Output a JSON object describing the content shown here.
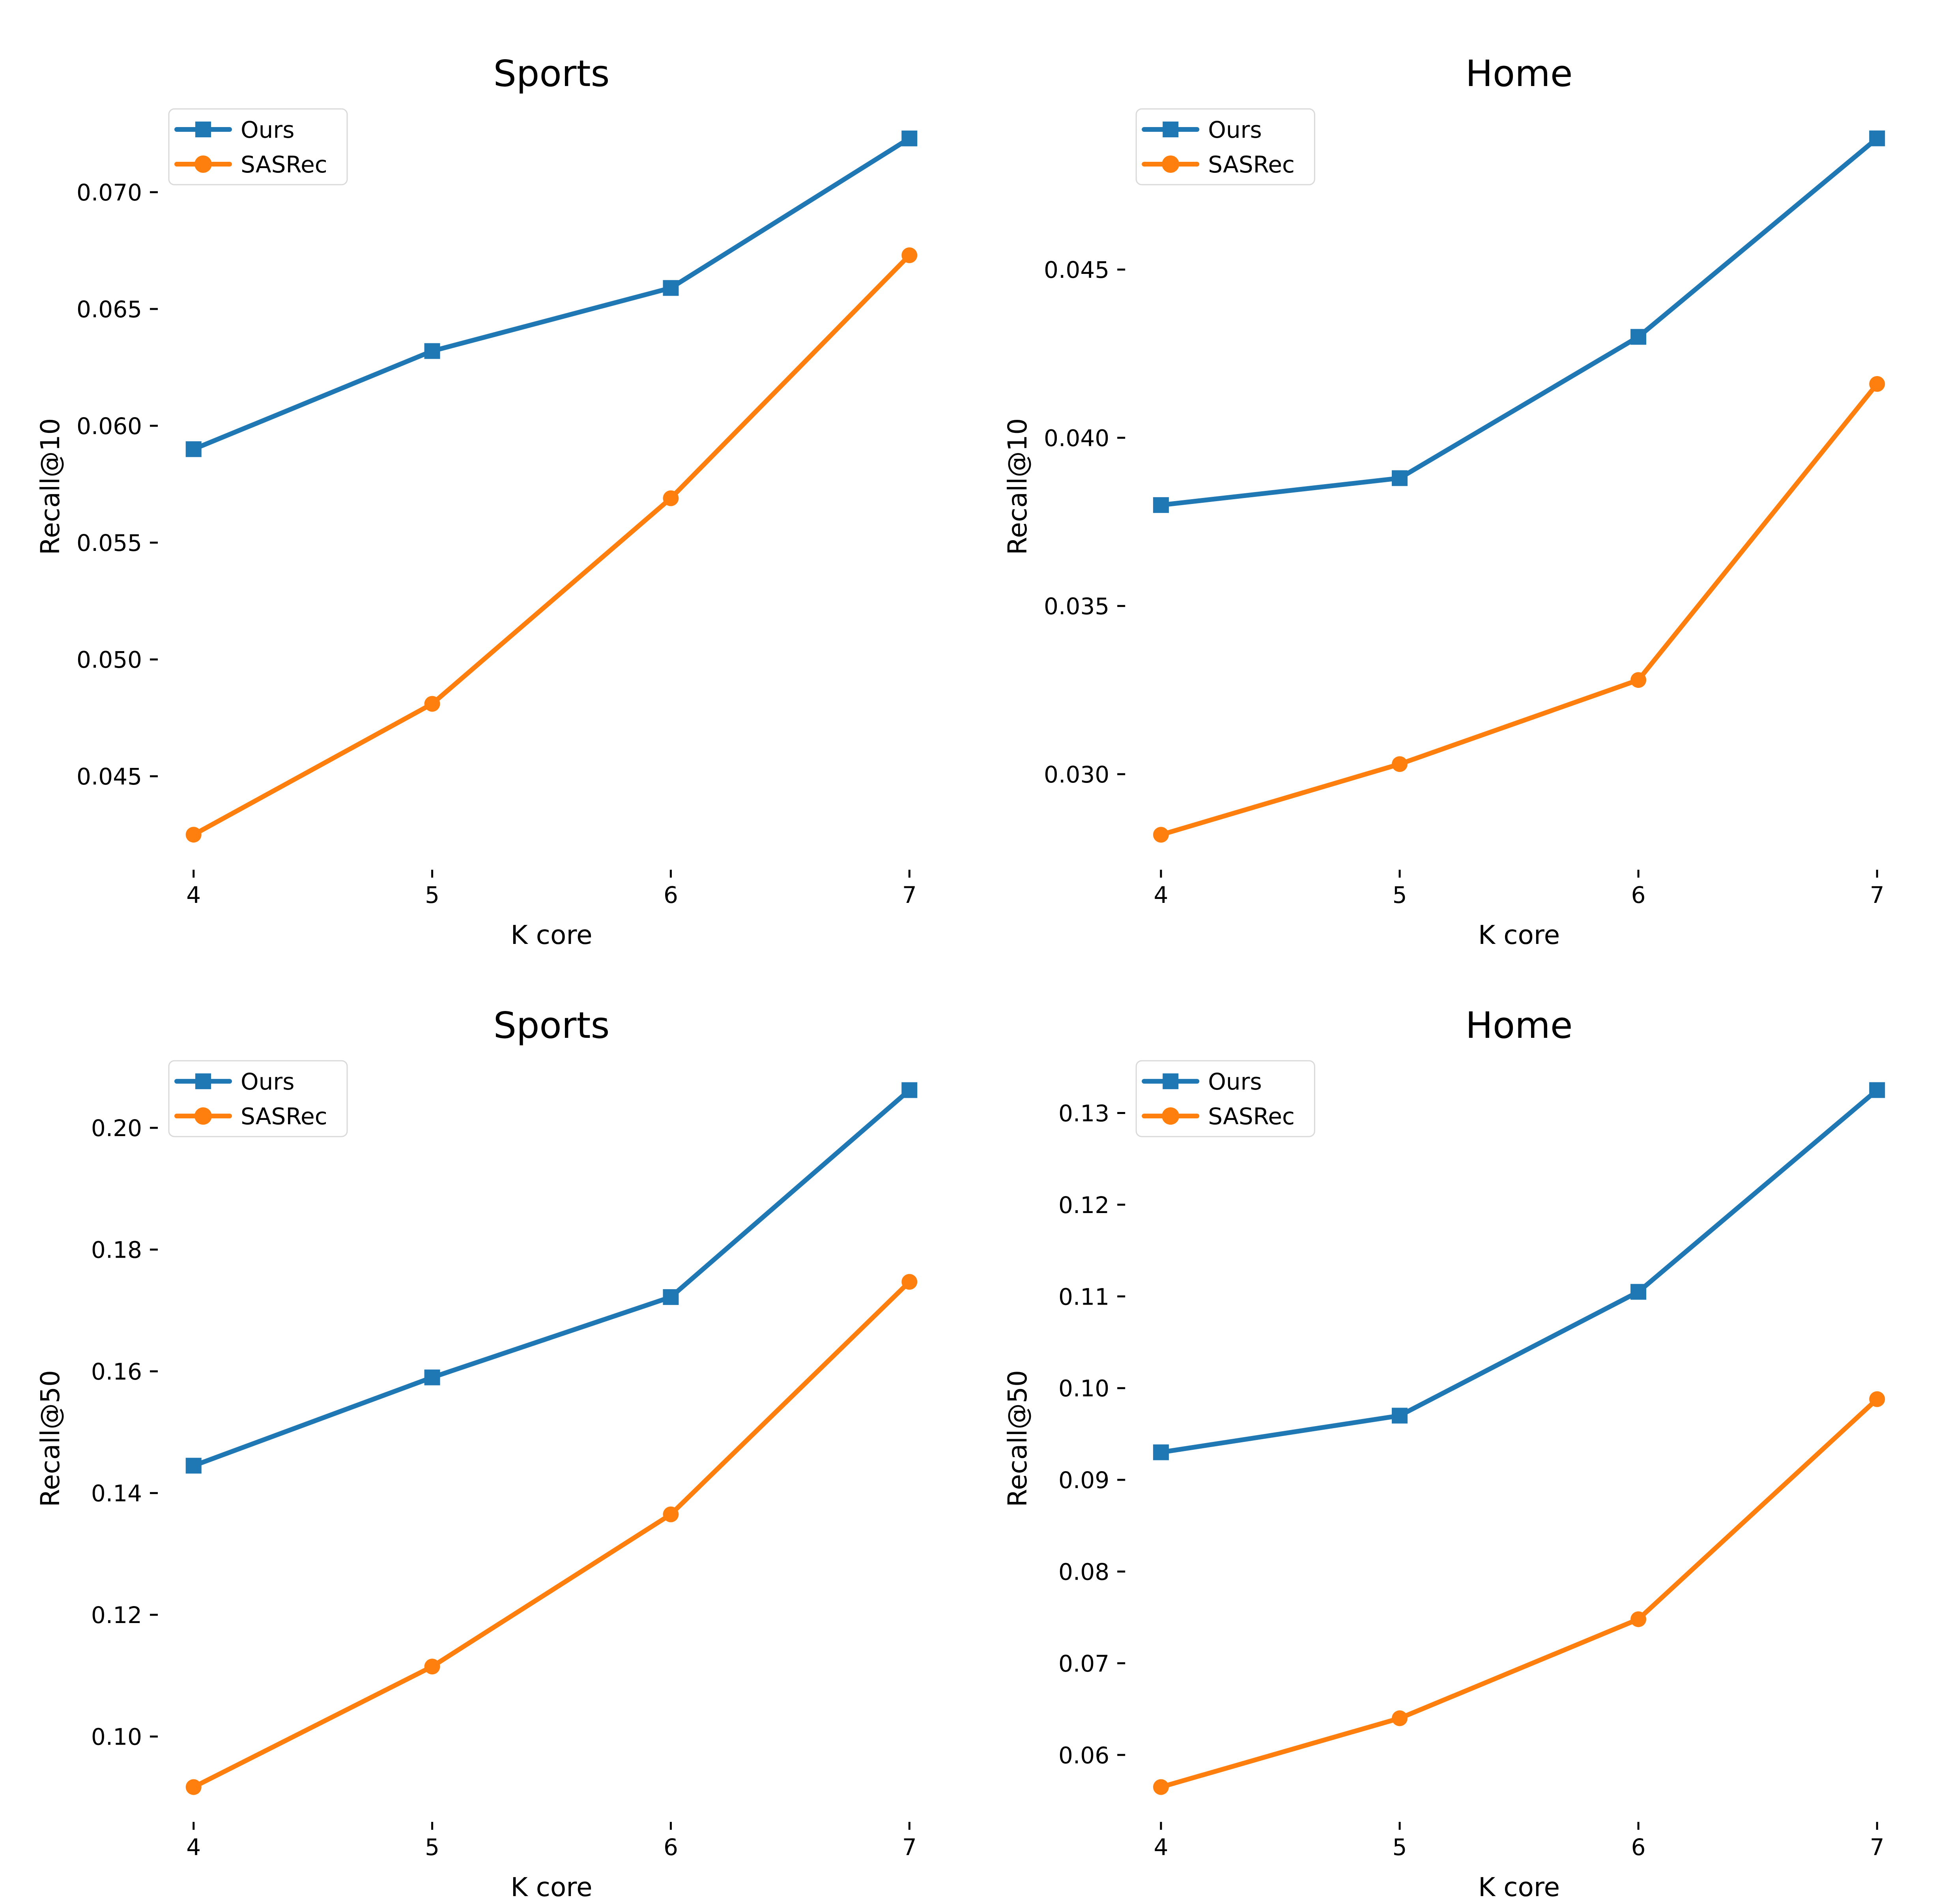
{
  "figure": {
    "background": "#ffffff",
    "text_color": "#000000",
    "tick_color": "#000000",
    "legend_border_color": "#d9d9d9",
    "legend_background": "#ffffff"
  },
  "chart_data": [
    {
      "type": "line",
      "title": "Sports",
      "xlabel": "K core",
      "ylabel": "Recall@10",
      "x": [
        4,
        5,
        6,
        7
      ],
      "x_tick_labels": [
        "4",
        "5",
        "6",
        "7"
      ],
      "xlim": [
        3.85,
        7.15
      ],
      "ylim": [
        0.041,
        0.0738
      ],
      "yticks": [
        0.045,
        0.05,
        0.055,
        0.06,
        0.065,
        0.07
      ],
      "y_tick_labels": [
        "0.045",
        "0.050",
        "0.055",
        "0.060",
        "0.065",
        "0.070"
      ],
      "grid": false,
      "legend_position": "upper left",
      "series": [
        {
          "name": "Ours",
          "color": "#1f77b4",
          "marker": "square",
          "values": [
            0.059,
            0.0632,
            0.0659,
            0.0723
          ]
        },
        {
          "name": "SASRec",
          "color": "#ff7f0e",
          "marker": "circle",
          "values": [
            0.0425,
            0.0481,
            0.0569,
            0.0673
          ]
        }
      ]
    },
    {
      "type": "line",
      "title": "Home",
      "xlabel": "K core",
      "ylabel": "Recall@10",
      "x": [
        4,
        5,
        6,
        7
      ],
      "x_tick_labels": [
        "4",
        "5",
        "6",
        "7"
      ],
      "xlim": [
        3.85,
        7.15
      ],
      "ylim": [
        0.02716,
        0.04994
      ],
      "yticks": [
        0.03,
        0.035,
        0.04,
        0.045
      ],
      "y_tick_labels": [
        "0.030",
        "0.035",
        "0.040",
        "0.045"
      ],
      "grid": false,
      "legend_position": "upper left",
      "series": [
        {
          "name": "Ours",
          "color": "#1f77b4",
          "marker": "square",
          "values": [
            0.038,
            0.0388,
            0.043,
            0.0489
          ]
        },
        {
          "name": "SASRec",
          "color": "#ff7f0e",
          "marker": "circle",
          "values": [
            0.0282,
            0.0303,
            0.0328,
            0.0416
          ]
        }
      ]
    },
    {
      "type": "line",
      "title": "Sports",
      "xlabel": "K core",
      "ylabel": "Recall@50",
      "x": [
        4,
        5,
        6,
        7
      ],
      "x_tick_labels": [
        "4",
        "5",
        "6",
        "7"
      ],
      "xlim": [
        3.85,
        7.15
      ],
      "ylim": [
        0.08598,
        0.21193
      ],
      "yticks": [
        0.1,
        0.12,
        0.14,
        0.16,
        0.18,
        0.2
      ],
      "y_tick_labels": [
        "0.10",
        "0.12",
        "0.14",
        "0.16",
        "0.18",
        "0.20"
      ],
      "grid": false,
      "legend_position": "upper left",
      "series": [
        {
          "name": "Ours",
          "color": "#1f77b4",
          "marker": "square",
          "values": [
            0.1445,
            0.159,
            0.1722,
            0.2062
          ]
        },
        {
          "name": "SASRec",
          "color": "#ff7f0e",
          "marker": "circle",
          "values": [
            0.0917,
            0.1115,
            0.1365,
            0.1747
          ]
        }
      ]
    },
    {
      "type": "line",
      "title": "Home",
      "xlabel": "K core",
      "ylabel": "Recall@50",
      "x": [
        4,
        5,
        6,
        7
      ],
      "x_tick_labels": [
        "4",
        "5",
        "6",
        "7"
      ],
      "xlim": [
        3.85,
        7.15
      ],
      "ylim": [
        0.0527,
        0.1363
      ],
      "yticks": [
        0.06,
        0.07,
        0.08,
        0.09,
        0.1,
        0.11,
        0.12,
        0.13
      ],
      "y_tick_labels": [
        "0.06",
        "0.07",
        "0.08",
        "0.09",
        "0.10",
        "0.11",
        "0.12",
        "0.13"
      ],
      "grid": false,
      "legend_position": "upper left",
      "series": [
        {
          "name": "Ours",
          "color": "#1f77b4",
          "marker": "square",
          "values": [
            0.093,
            0.097,
            0.1105,
            0.1325
          ]
        },
        {
          "name": "SASRec",
          "color": "#ff7f0e",
          "marker": "circle",
          "values": [
            0.0565,
            0.064,
            0.0748,
            0.0988
          ]
        }
      ]
    }
  ]
}
